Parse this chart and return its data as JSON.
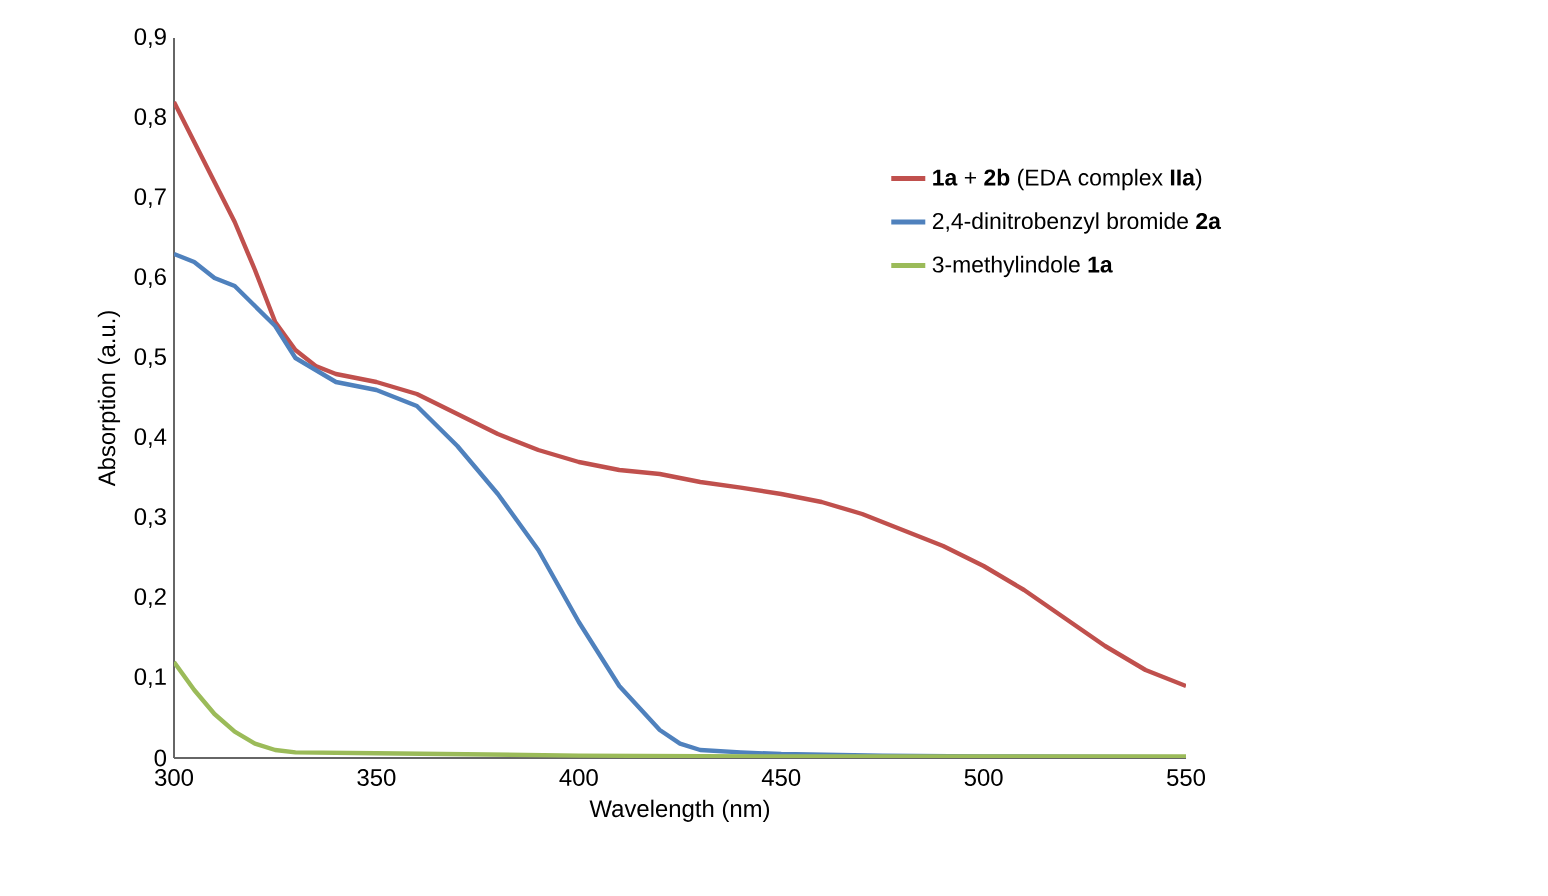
{
  "chart_data": {
    "type": "line",
    "xlabel": "Wavelength (nm)",
    "ylabel": "Absorption (a.u.)",
    "xlim": [
      300,
      550
    ],
    "xticks": [
      300,
      350,
      400,
      450,
      500,
      550
    ],
    "ylim": [
      0,
      0.9
    ],
    "yticks": [
      0,
      {
        "value": 0.1,
        "label": "0,1"
      },
      {
        "value": 0.2,
        "label": "0,2"
      },
      {
        "value": 0.3,
        "label": "0,3"
      },
      {
        "value": 0.4,
        "label": "0,4"
      },
      {
        "value": 0.5,
        "label": "0,5"
      },
      {
        "value": 0.6,
        "label": "0,6"
      },
      {
        "value": 0.7,
        "label": "0,7"
      },
      {
        "value": 0.8,
        "label": "0,8"
      },
      {
        "value": 0.9,
        "label": "0,9"
      }
    ],
    "grid": false,
    "legend": "right",
    "marker": "none",
    "line_style": "solid",
    "series": [
      {
        "name": "**1a** + **2b** (EDA complex **IIa**)",
        "color": "#c0504d",
        "x": [
          300,
          305,
          310,
          315,
          320,
          325,
          330,
          335,
          340,
          350,
          360,
          370,
          380,
          390,
          400,
          410,
          420,
          430,
          440,
          450,
          460,
          470,
          480,
          490,
          500,
          510,
          520,
          530,
          540,
          550
        ],
        "values": [
          0.82,
          0.77,
          0.72,
          0.67,
          0.61,
          0.545,
          0.51,
          0.49,
          0.48,
          0.47,
          0.455,
          0.43,
          0.405,
          0.385,
          0.37,
          0.36,
          0.355,
          0.345,
          0.338,
          0.33,
          0.32,
          0.305,
          0.285,
          0.265,
          0.24,
          0.21,
          0.175,
          0.14,
          0.11,
          0.09
        ]
      },
      {
        "name": "2,4-dinitrobenzyl bromide **2a**",
        "color": "#4f81bd",
        "x": [
          300,
          305,
          310,
          315,
          320,
          325,
          330,
          335,
          340,
          350,
          360,
          370,
          380,
          390,
          400,
          410,
          420,
          425,
          430,
          440,
          450,
          475,
          500,
          550
        ],
        "values": [
          0.63,
          0.62,
          0.6,
          0.59,
          0.565,
          0.54,
          0.5,
          0.485,
          0.47,
          0.46,
          0.44,
          0.39,
          0.33,
          0.26,
          0.17,
          0.09,
          0.035,
          0.018,
          0.01,
          0.007,
          0.005,
          0.003,
          0.002,
          0.001
        ]
      },
      {
        "name": "3-methylindole **1a**",
        "color": "#9bbb59",
        "x": [
          300,
          305,
          310,
          315,
          320,
          325,
          330,
          350,
          400,
          450,
          550
        ],
        "values": [
          0.12,
          0.085,
          0.055,
          0.033,
          0.018,
          0.01,
          0.007,
          0.006,
          0.003,
          0.002,
          0.002
        ]
      }
    ]
  }
}
